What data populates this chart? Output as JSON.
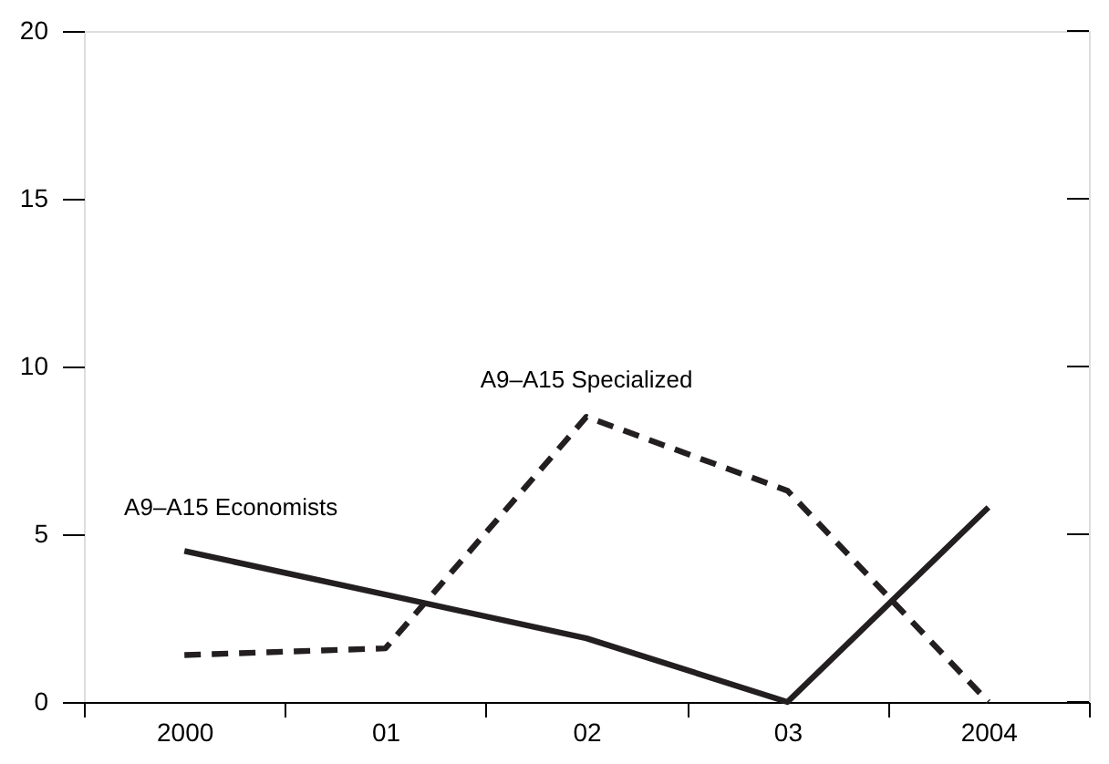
{
  "chart_data": {
    "type": "line",
    "categories": [
      "2000",
      "01",
      "02",
      "03",
      "2004"
    ],
    "series": [
      {
        "color": "#231f20",
        "line_style": "solid",
        "values": [
          4.5,
          3.2,
          1.9,
          0,
          5.8
        ]
      },
      {
        "color": "#231f20",
        "line_style": "dashed",
        "values": [
          1.4,
          1.6,
          8.5,
          6.3,
          0
        ]
      }
    ],
    "ylim": [
      0,
      20
    ],
    "yticks": [
      0,
      5,
      10,
      15,
      20
    ],
    "grid": false,
    "marker": "none",
    "annotations": [
      "A9–A15 Economists",
      "A9–A15 Specialized"
    ]
  }
}
